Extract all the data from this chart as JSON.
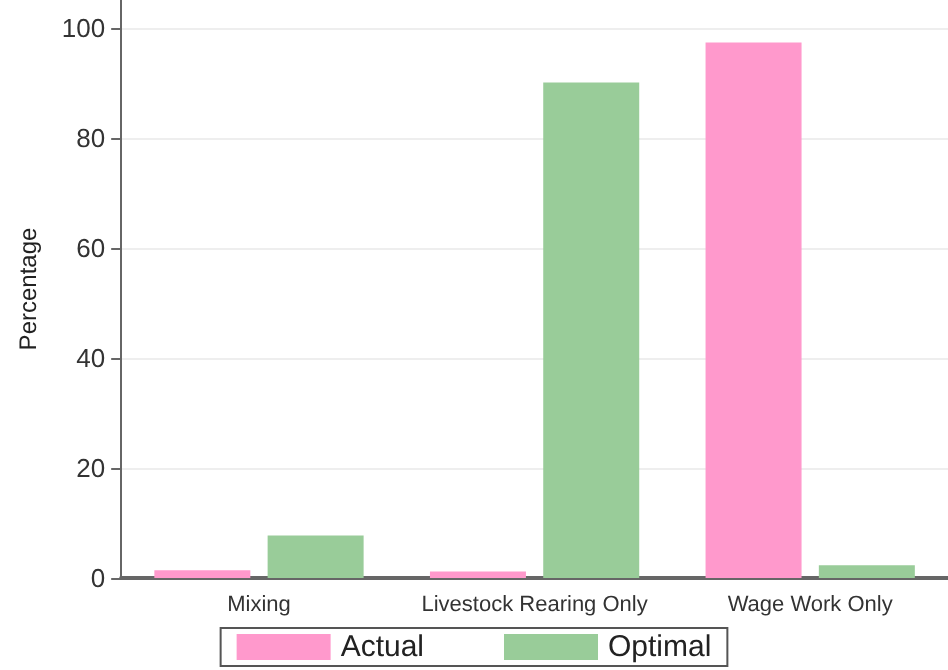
{
  "chart_data": {
    "type": "bar",
    "ylabel": "Percentage",
    "categories": [
      "Mixing",
      "Livestock Rearing Only",
      "Wage Work Only"
    ],
    "series": [
      {
        "name": "Actual",
        "color": "#ff99cc",
        "values": [
          1.4,
          1.2,
          97.3
        ]
      },
      {
        "name": "Optimal",
        "color": "#99cc99",
        "values": [
          7.7,
          90.0,
          2.3
        ]
      }
    ],
    "ylim": [
      0,
      105
    ],
    "yticks": [
      0,
      20,
      40,
      60,
      80,
      100
    ],
    "grid": "y",
    "legend": "bottom"
  }
}
